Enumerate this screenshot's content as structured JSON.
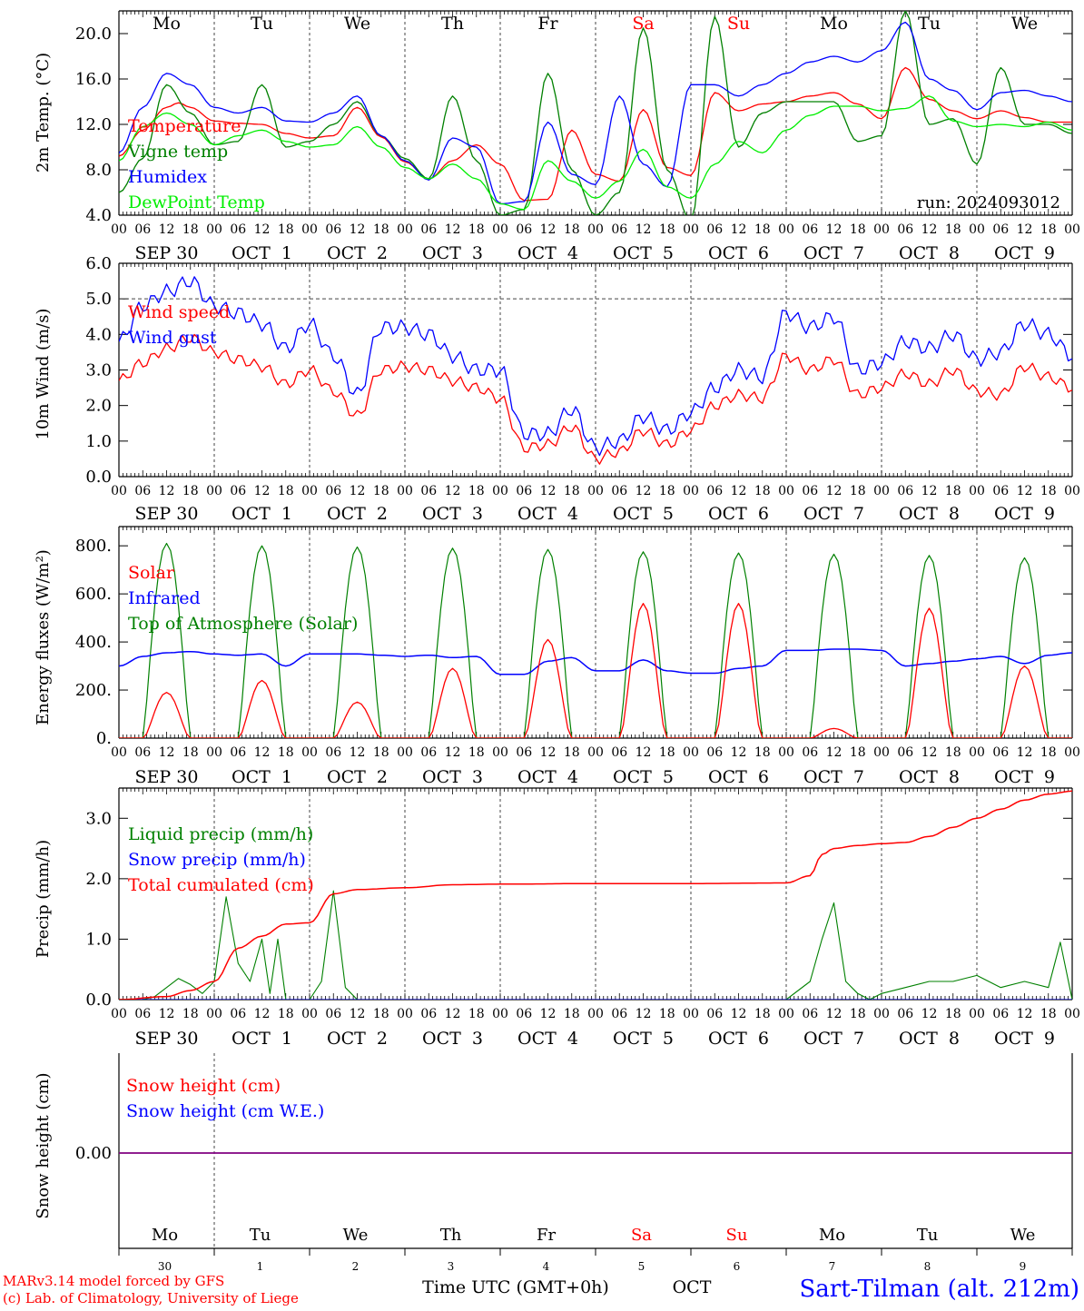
{
  "day_labels": [
    "Mo",
    "Tu",
    "We",
    "Th",
    "Fr",
    "Sa",
    "Su",
    "Mo",
    "Tu",
    "We"
  ],
  "weekend_days": [
    5,
    6
  ],
  "date_labels": [
    "SEP 30",
    "OCT  1",
    "OCT  2",
    "OCT  3",
    "OCT  4",
    "OCT  5",
    "OCT  6",
    "OCT  7",
    "OCT  8",
    "OCT  9"
  ],
  "hour_labels": [
    "00",
    "06",
    "12",
    "18"
  ],
  "final_hour_label": "00",
  "bottom_day_numbers": [
    "30",
    "1",
    "2",
    "3",
    "4",
    "5",
    "6",
    "7",
    "8",
    "9"
  ],
  "run_label": "run: 2024093012",
  "footer": {
    "model_line1": "MARv3.14 model forced by GFS",
    "model_line2": "(c) Lab. of Climatology, University of Liege",
    "time_axis": "Time UTC (GMT+0h)",
    "month": "OCT",
    "station": "Sart-Tilman (alt. 212m)"
  },
  "colors": {
    "red": "#ff0000",
    "green": "#008000",
    "blue": "#0000ff",
    "lightgreen": "#00ee00",
    "purple": "#800080",
    "grid": "#555555"
  },
  "chart_data": [
    {
      "id": "temperature",
      "type": "line",
      "ylabel": "2m Temp. (°C)",
      "ylim": [
        4,
        22
      ],
      "yticks": [
        4,
        8,
        12,
        16,
        20
      ],
      "tick_labels": [
        "4.0",
        "8.0",
        "12.0",
        "16.0",
        "20.0"
      ],
      "x_unit": "hours since 2024-09-30 00 UTC",
      "xlim": [
        0,
        240
      ],
      "series": [
        {
          "name": "Temperature",
          "color": "red",
          "x": [
            0,
            6,
            12,
            15,
            18,
            24,
            30,
            36,
            42,
            48,
            54,
            60,
            66,
            72,
            78,
            84,
            90,
            96,
            102,
            108,
            114,
            120,
            126,
            132,
            138,
            144,
            150,
            156,
            162,
            168,
            174,
            180,
            186,
            192,
            198,
            204,
            210,
            216,
            222,
            228,
            234,
            240
          ],
          "y": [
            9.2,
            11.5,
            13.5,
            13.9,
            13.5,
            12.3,
            12.1,
            12.0,
            11.2,
            10.8,
            11.0,
            13.5,
            10.9,
            8.7,
            7.2,
            8.8,
            10.2,
            8.5,
            5.3,
            5.4,
            11.5,
            7.6,
            7.0,
            13.3,
            8.2,
            7.5,
            14.8,
            13.2,
            13.8,
            14.0,
            14.5,
            14.8,
            13.8,
            12.5,
            17.0,
            14.2,
            13.2,
            12.5,
            13.2,
            12.6,
            12.2,
            12.2
          ]
        },
        {
          "name": "Vigne temp",
          "color": "green",
          "x": [
            0,
            6,
            12,
            18,
            24,
            30,
            36,
            42,
            48,
            54,
            60,
            66,
            72,
            78,
            84,
            90,
            96,
            102,
            108,
            114,
            120,
            126,
            132,
            138,
            144,
            150,
            156,
            162,
            168,
            174,
            180,
            186,
            192,
            198,
            204,
            210,
            216,
            222,
            228,
            234,
            240
          ],
          "y": [
            6.0,
            9.0,
            15.5,
            13.0,
            10.2,
            10.5,
            15.5,
            10.0,
            10.5,
            12.0,
            14.0,
            11.0,
            9.0,
            7.2,
            14.5,
            8.8,
            4.0,
            4.5,
            16.5,
            8.0,
            4.0,
            6.0,
            20.5,
            8.0,
            3.5,
            21.5,
            10.0,
            13.0,
            14.0,
            14.0,
            14.0,
            10.5,
            11.0,
            22.0,
            12.0,
            12.5,
            8.5,
            17.0,
            12.0,
            12.0,
            11.2
          ]
        },
        {
          "name": "Humidex",
          "color": "blue",
          "x": [
            0,
            6,
            12,
            18,
            24,
            30,
            36,
            42,
            48,
            54,
            60,
            66,
            72,
            78,
            84,
            90,
            96,
            102,
            108,
            114,
            120,
            126,
            132,
            138,
            144,
            150,
            156,
            162,
            168,
            174,
            180,
            186,
            192,
            198,
            204,
            210,
            216,
            222,
            228,
            234,
            240
          ],
          "y": [
            9.5,
            13.5,
            16.5,
            15.5,
            13.5,
            13.0,
            13.5,
            12.3,
            12.2,
            13.0,
            14.5,
            11.0,
            8.8,
            7.1,
            10.8,
            10.0,
            5.0,
            5.2,
            12.2,
            7.6,
            6.7,
            14.5,
            8.5,
            6.5,
            15.5,
            15.5,
            14.5,
            15.5,
            16.5,
            17.5,
            18.0,
            17.5,
            18.5,
            21.0,
            16.0,
            15.0,
            13.3,
            14.8,
            15.0,
            14.5,
            14.0
          ]
        },
        {
          "name": "DewPoint Temp",
          "color": "lightgreen",
          "x": [
            0,
            6,
            12,
            18,
            24,
            30,
            36,
            42,
            48,
            54,
            60,
            66,
            72,
            78,
            84,
            90,
            96,
            102,
            108,
            114,
            120,
            126,
            132,
            138,
            144,
            150,
            156,
            162,
            168,
            174,
            180,
            186,
            192,
            198,
            204,
            210,
            216,
            222,
            228,
            234,
            240
          ],
          "y": [
            8.8,
            11.8,
            13.0,
            12.0,
            10.2,
            11.0,
            11.5,
            10.5,
            10.0,
            10.2,
            11.8,
            10.0,
            8.2,
            7.2,
            8.5,
            7.2,
            5.0,
            4.5,
            8.8,
            7.0,
            5.5,
            7.0,
            9.8,
            6.5,
            5.5,
            8.5,
            10.5,
            9.5,
            11.5,
            12.8,
            13.6,
            13.6,
            13.2,
            13.4,
            14.5,
            12.3,
            11.8,
            12.0,
            11.8,
            12.2,
            11.5
          ]
        }
      ]
    },
    {
      "id": "wind",
      "type": "line",
      "ylabel": "10m Wind (m/s)",
      "ylim": [
        0,
        6
      ],
      "yticks": [
        0,
        1,
        2,
        3,
        4,
        5,
        6
      ],
      "tick_labels": [
        "0.0",
        "1.0",
        "2.0",
        "3.0",
        "4.0",
        "5.0",
        "6.0"
      ],
      "reference_line": 5.0,
      "xlim": [
        0,
        240
      ],
      "series": [
        {
          "name": "Wind speed",
          "color": "red",
          "x": [
            0,
            6,
            12,
            18,
            24,
            30,
            36,
            42,
            48,
            54,
            60,
            66,
            72,
            78,
            84,
            90,
            96,
            102,
            108,
            114,
            120,
            126,
            132,
            138,
            144,
            150,
            156,
            162,
            168,
            174,
            180,
            186,
            192,
            198,
            204,
            210,
            216,
            222,
            228,
            234,
            240
          ],
          "y": [
            2.7,
            3.2,
            3.6,
            3.9,
            3.5,
            3.3,
            3.1,
            2.6,
            3.0,
            2.4,
            1.7,
            3.0,
            3.1,
            3.0,
            2.7,
            2.5,
            2.2,
            0.8,
            0.9,
            1.4,
            0.5,
            0.7,
            1.3,
            0.9,
            1.3,
            2.0,
            2.3,
            2.2,
            3.4,
            3.0,
            3.3,
            2.3,
            2.5,
            2.9,
            2.6,
            3.0,
            2.4,
            2.3,
            3.1,
            2.8,
            2.5
          ]
        },
        {
          "name": "Wind gust",
          "color": "blue",
          "x": [
            0,
            6,
            12,
            18,
            24,
            30,
            36,
            42,
            48,
            54,
            60,
            66,
            72,
            78,
            84,
            90,
            96,
            102,
            108,
            114,
            120,
            126,
            132,
            138,
            144,
            150,
            156,
            162,
            168,
            174,
            180,
            186,
            192,
            198,
            204,
            210,
            216,
            222,
            228,
            234,
            240
          ],
          "y": [
            3.8,
            4.8,
            5.2,
            5.5,
            4.8,
            4.6,
            4.3,
            3.6,
            4.3,
            3.4,
            2.3,
            4.2,
            4.2,
            4.0,
            3.4,
            3.0,
            3.0,
            1.2,
            1.2,
            1.9,
            0.8,
            1.0,
            1.7,
            1.3,
            1.8,
            2.5,
            3.0,
            2.8,
            4.6,
            4.2,
            4.5,
            3.0,
            3.2,
            3.8,
            3.6,
            4.0,
            3.3,
            3.5,
            4.3,
            4.0,
            3.4
          ]
        }
      ]
    },
    {
      "id": "energy",
      "type": "line",
      "ylabel": "Energy fluxes (W/m²)",
      "ylim": [
        0,
        880
      ],
      "yticks": [
        0,
        200,
        400,
        600,
        800
      ],
      "tick_labels": [
        "0.",
        "200.",
        "400.",
        "600.",
        "800."
      ],
      "xlim": [
        0,
        240
      ],
      "solar_daily_peaks": [
        190,
        240,
        150,
        290,
        410,
        560,
        560,
        40,
        540,
        300
      ],
      "toa_daily_peaks": [
        810,
        800,
        795,
        790,
        785,
        775,
        770,
        765,
        760,
        750
      ],
      "series": [
        {
          "name": "Solar",
          "color": "red"
        },
        {
          "name": "Infrared",
          "color": "blue",
          "x": [
            0,
            6,
            12,
            18,
            24,
            30,
            36,
            42,
            48,
            54,
            60,
            66,
            72,
            78,
            84,
            90,
            96,
            102,
            108,
            114,
            120,
            126,
            132,
            138,
            144,
            150,
            156,
            162,
            168,
            174,
            180,
            186,
            192,
            198,
            204,
            210,
            216,
            222,
            228,
            234,
            240
          ],
          "y": [
            300,
            340,
            355,
            360,
            350,
            345,
            350,
            300,
            350,
            350,
            350,
            345,
            340,
            345,
            335,
            340,
            265,
            265,
            320,
            335,
            280,
            280,
            325,
            280,
            270,
            270,
            290,
            300,
            365,
            365,
            370,
            370,
            365,
            300,
            310,
            320,
            330,
            340,
            310,
            345,
            355
          ]
        },
        {
          "name": "Top of Atmosphere (Solar)",
          "color": "green"
        }
      ]
    },
    {
      "id": "precip",
      "type": "line",
      "ylabel": "Precip (mm/h)",
      "ylim": [
        0,
        3.5
      ],
      "yticks": [
        0,
        1,
        2,
        3
      ],
      "tick_labels": [
        "0.0",
        "1.0",
        "2.0",
        "3.0"
      ],
      "xlim": [
        0,
        240
      ],
      "series": [
        {
          "name": "Liquid precip (mm/h)",
          "color": "green",
          "x": [
            0,
            6,
            9,
            12,
            15,
            18,
            21,
            24,
            27,
            30,
            33,
            36,
            38,
            40,
            42,
            48,
            51,
            54,
            57,
            60,
            66,
            72,
            96,
            120,
            144,
            168,
            174,
            177,
            180,
            183,
            186,
            189,
            192,
            198,
            204,
            210,
            216,
            222,
            228,
            234,
            237,
            240
          ],
          "y": [
            0,
            0,
            0.05,
            0.2,
            0.35,
            0.25,
            0.1,
            0.3,
            1.7,
            0.6,
            0.3,
            1.0,
            0.1,
            1.0,
            0,
            0,
            0.3,
            1.8,
            0.2,
            0,
            0,
            0,
            0,
            0,
            0,
            0,
            0.3,
            1.0,
            1.6,
            0.3,
            0.1,
            0,
            0.1,
            0.2,
            0.3,
            0.3,
            0.4,
            0.2,
            0.3,
            0.2,
            0.95,
            0
          ]
        },
        {
          "name": "Snow precip (mm/h)",
          "color": "blue",
          "x": [
            0,
            240
          ],
          "y": [
            0,
            0
          ]
        },
        {
          "name": "Total cumulated (cm)",
          "color": "red",
          "x": [
            0,
            12,
            18,
            24,
            30,
            36,
            42,
            48,
            54,
            60,
            72,
            84,
            96,
            120,
            144,
            168,
            174,
            177,
            180,
            186,
            192,
            198,
            204,
            210,
            216,
            222,
            228,
            234,
            240
          ],
          "y": [
            0,
            0.05,
            0.15,
            0.3,
            0.85,
            1.05,
            1.25,
            1.27,
            1.75,
            1.82,
            1.85,
            1.9,
            1.91,
            1.92,
            1.92,
            1.93,
            2.05,
            2.4,
            2.5,
            2.55,
            2.58,
            2.6,
            2.7,
            2.85,
            3.0,
            3.15,
            3.3,
            3.4,
            3.45
          ]
        }
      ]
    },
    {
      "id": "snow",
      "type": "line",
      "ylabel": "Snow height (cm)",
      "tick_labels": [
        "0.00"
      ],
      "xlim": [
        0,
        240
      ],
      "series": [
        {
          "name": "Snow height (cm)",
          "color": "red",
          "x": [
            0,
            240
          ],
          "y": [
            0,
            0
          ]
        },
        {
          "name": "Snow height (cm W.E.)",
          "color": "blue",
          "x": [
            0,
            240
          ],
          "y": [
            0,
            0
          ]
        }
      ]
    }
  ]
}
